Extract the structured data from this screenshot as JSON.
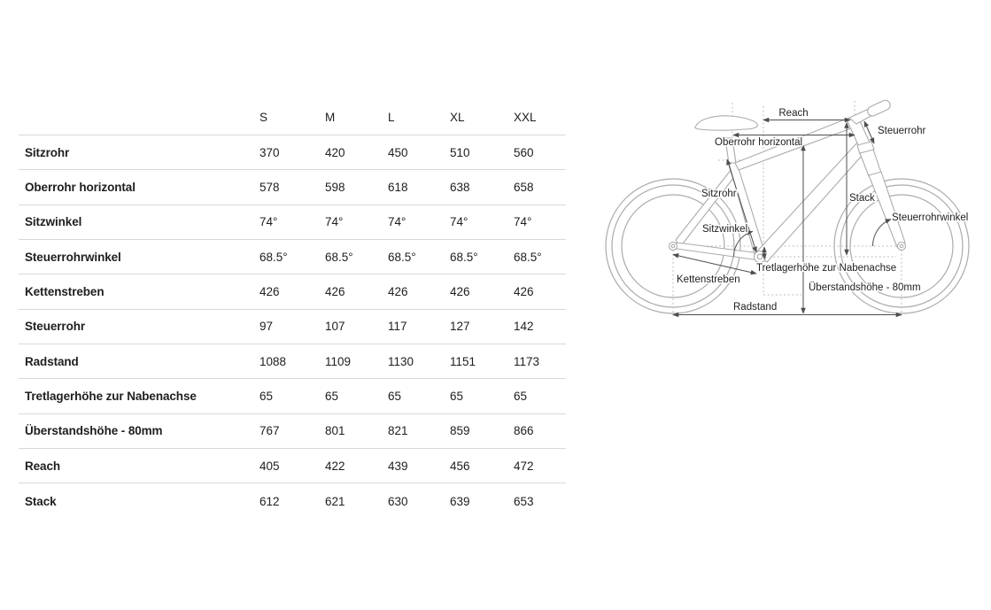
{
  "colors": {
    "text": "#202020",
    "line": "#d8d8d8",
    "frame": "#ababab",
    "dotted": "#bdbdbd",
    "dimension": "#4d4d4d"
  },
  "table": {
    "sizes": [
      "S",
      "M",
      "L",
      "XL",
      "XXL"
    ],
    "rows": [
      {
        "label": "Sitzrohr",
        "values": [
          "370",
          "420",
          "450",
          "510",
          "560"
        ]
      },
      {
        "label": "Oberrohr horizontal",
        "values": [
          "578",
          "598",
          "618",
          "638",
          "658"
        ]
      },
      {
        "label": "Sitzwinkel",
        "values": [
          "74°",
          "74°",
          "74°",
          "74°",
          "74°"
        ]
      },
      {
        "label": "Steuerrohrwinkel",
        "values": [
          "68.5°",
          "68.5°",
          "68.5°",
          "68.5°",
          "68.5°"
        ]
      },
      {
        "label": "Kettenstreben",
        "values": [
          "426",
          "426",
          "426",
          "426",
          "426"
        ]
      },
      {
        "label": "Steuerrohr",
        "values": [
          "97",
          "107",
          "117",
          "127",
          "142"
        ]
      },
      {
        "label": "Radstand",
        "values": [
          "1088",
          "1109",
          "1130",
          "1151",
          "1173"
        ]
      },
      {
        "label": "Tretlagerhöhe zur Nabenachse",
        "values": [
          "65",
          "65",
          "65",
          "65",
          "65"
        ]
      },
      {
        "label": "Überstandshöhe - 80mm",
        "values": [
          "767",
          "801",
          "821",
          "859",
          "866"
        ]
      },
      {
        "label": "Reach",
        "values": [
          "405",
          "422",
          "439",
          "456",
          "472"
        ]
      },
      {
        "label": "Stack",
        "values": [
          "612",
          "621",
          "630",
          "639",
          "653"
        ]
      }
    ]
  },
  "diagram": {
    "labels": {
      "reach": "Reach",
      "steuerrohr": "Steuerrohr",
      "oberrohr": "Oberrohr horizontal",
      "sitzrohr": "Sitzrohr",
      "stack": "Stack",
      "steuerrohrwinkel": "Steuerrohrwinkel",
      "sitzwinkel": "Sitzwinkel",
      "tretlagerhoehe": "Tretlagerhöhe zur Nabenachse",
      "kettenstreben": "Kettenstreben",
      "ueberstandshoehe": "Überstandshöhe - 80mm",
      "radstand": "Radstand"
    }
  },
  "chart_data": {
    "type": "table",
    "title": "Bike frame geometry",
    "categories": [
      "S",
      "M",
      "L",
      "XL",
      "XXL"
    ],
    "series": [
      {
        "name": "Sitzrohr",
        "values": [
          370,
          420,
          450,
          510,
          560
        ]
      },
      {
        "name": "Oberrohr horizontal",
        "values": [
          578,
          598,
          618,
          638,
          658
        ]
      },
      {
        "name": "Sitzwinkel",
        "values": [
          74,
          74,
          74,
          74,
          74
        ],
        "unit": "°"
      },
      {
        "name": "Steuerrohrwinkel",
        "values": [
          68.5,
          68.5,
          68.5,
          68.5,
          68.5
        ],
        "unit": "°"
      },
      {
        "name": "Kettenstreben",
        "values": [
          426,
          426,
          426,
          426,
          426
        ]
      },
      {
        "name": "Steuerrohr",
        "values": [
          97,
          107,
          117,
          127,
          142
        ]
      },
      {
        "name": "Radstand",
        "values": [
          1088,
          1109,
          1130,
          1151,
          1173
        ]
      },
      {
        "name": "Tretlagerhöhe zur Nabenachse",
        "values": [
          65,
          65,
          65,
          65,
          65
        ]
      },
      {
        "name": "Überstandshöhe - 80mm",
        "values": [
          767,
          801,
          821,
          859,
          866
        ]
      },
      {
        "name": "Reach",
        "values": [
          405,
          422,
          439,
          456,
          472
        ]
      },
      {
        "name": "Stack",
        "values": [
          612,
          621,
          630,
          639,
          653
        ]
      }
    ]
  }
}
